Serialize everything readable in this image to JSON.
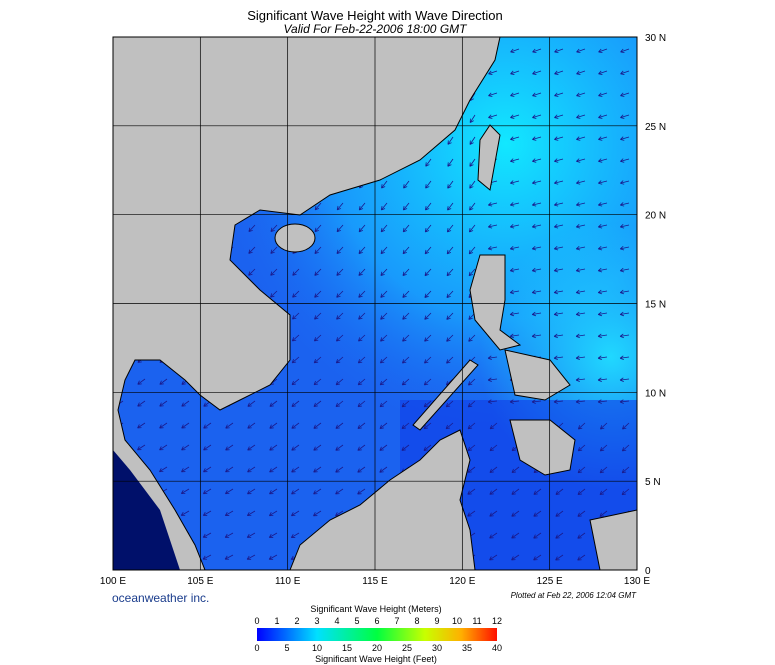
{
  "header": {
    "title": "Significant Wave Height with Wave Direction",
    "subtitle": "Valid For Feb-22-2006 18:00 GMT"
  },
  "map": {
    "lat_labels": [
      "30 N",
      "25 N",
      "20 N",
      "15 N",
      "10 N",
      "5 N",
      "0"
    ],
    "lon_labels": [
      "100 E",
      "105 E",
      "110 E",
      "115 E",
      "120 E",
      "125 E",
      "130 E"
    ]
  },
  "footer": {
    "brand": "oceanweather inc.",
    "plotted": "Plotted at Feb 22, 2006 12:04 GMT"
  },
  "colorbar": {
    "meters_title": "Significant Wave Height (Meters)",
    "meters_ticks": [
      0,
      1,
      2,
      3,
      4,
      5,
      6,
      7,
      8,
      9,
      10,
      11,
      12
    ],
    "feet_title": "Significant Wave Height (Feet)",
    "feet_ticks": [
      0,
      5,
      10,
      15,
      20,
      25,
      30,
      35,
      40
    ]
  }
}
